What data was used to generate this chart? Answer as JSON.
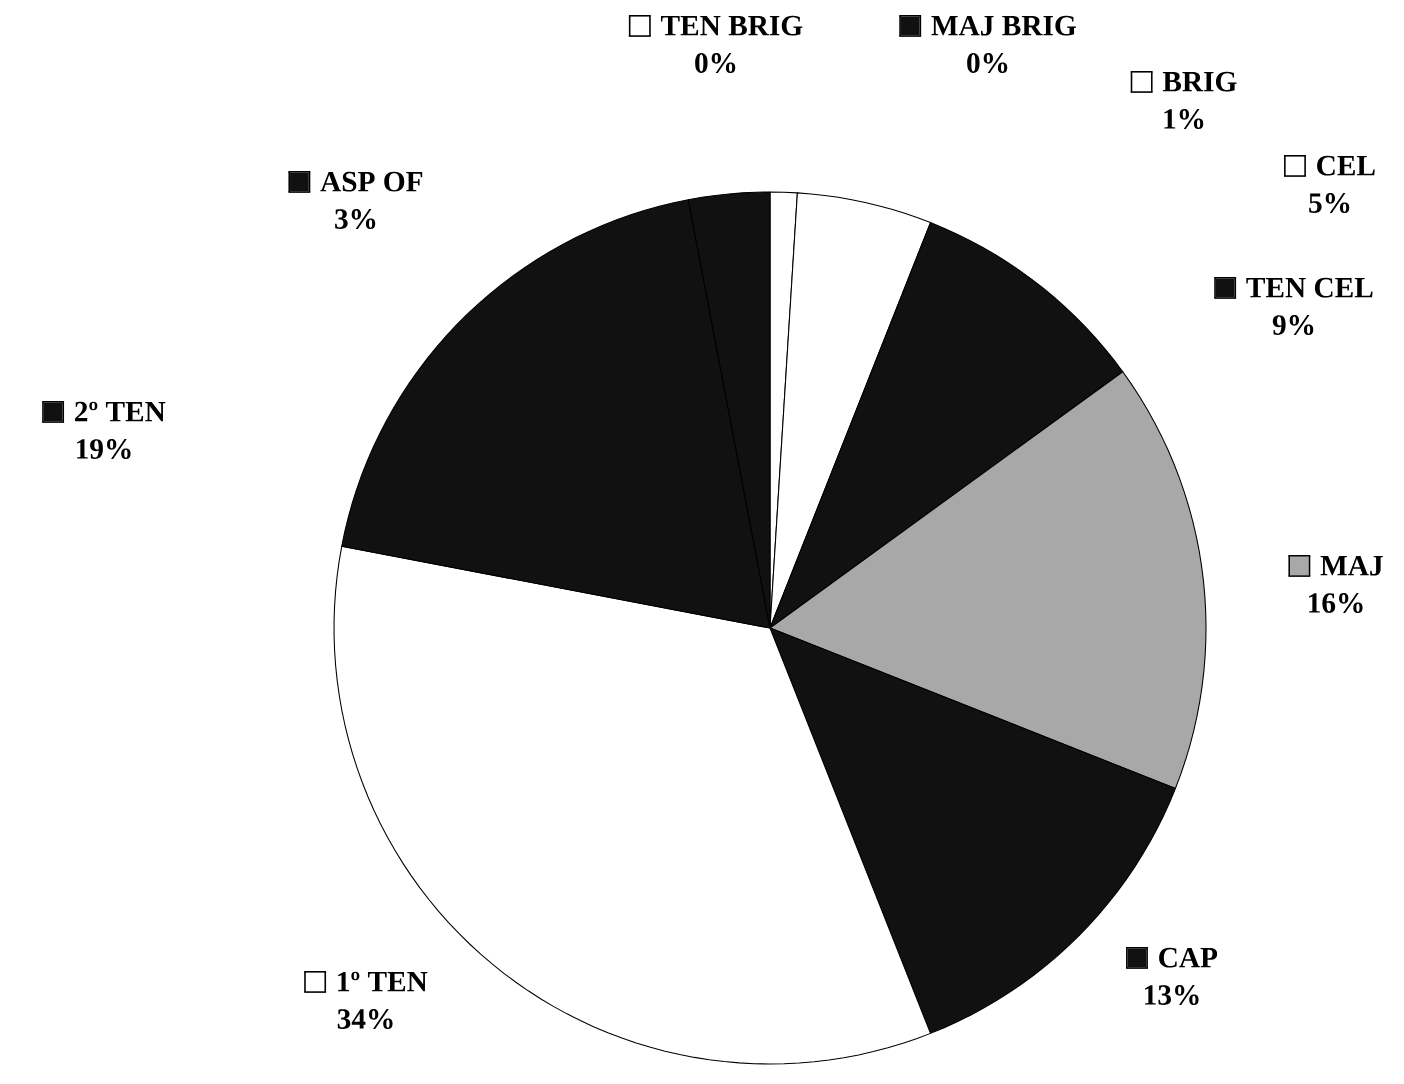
{
  "chart_data": {
    "type": "pie",
    "categories": [
      "TEN BRIG",
      "MAJ BRIG",
      "BRIG",
      "CEL",
      "TEN CEL",
      "MAJ",
      "CAP",
      "1º TEN",
      "2º TEN",
      "ASP OF"
    ],
    "values": [
      0,
      0,
      1,
      5,
      9,
      16,
      13,
      34,
      19,
      3
    ],
    "value_labels": [
      "0%",
      "0%",
      "1%",
      "5%",
      "9%",
      "16%",
      "13%",
      "34%",
      "19%",
      "3%"
    ],
    "legend": "top left",
    "colors": [
      "#ffffff",
      "#111111",
      "#ffffff",
      "#ffffff",
      "#111111",
      "#a8a8a8",
      "#111111",
      "#ffffff",
      "#111111",
      "#111111"
    ]
  }
}
